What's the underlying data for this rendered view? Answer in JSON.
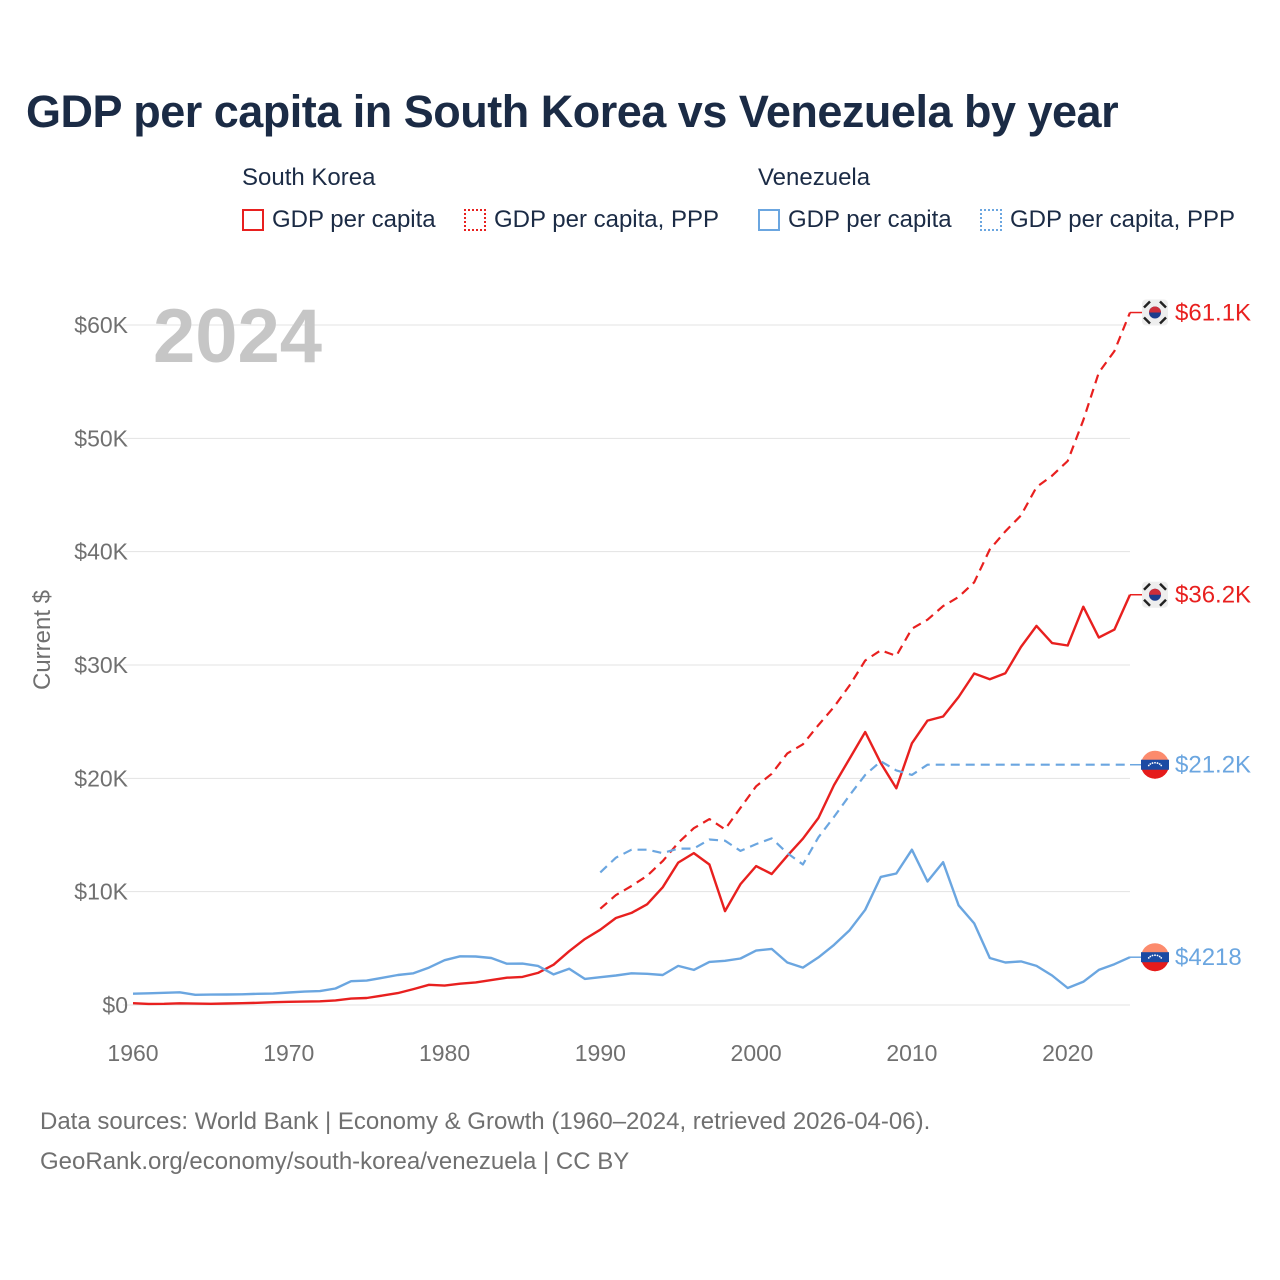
{
  "title": "GDP per capita in South Korea vs Venezuela by year",
  "legend": {
    "groups": [
      {
        "name": "South Korea",
        "items": [
          "GDP per capita",
          "GDP per capita, PPP"
        ]
      },
      {
        "name": "Venezuela",
        "items": [
          "GDP per capita",
          "GDP per capita, PPP"
        ]
      }
    ]
  },
  "footer": {
    "line1": "Data sources: World Bank | Economy & Growth (1960–2024, retrieved 2026-04-06).",
    "line2": "GeoRank.org/economy/south-korea/venezuela | CC BY"
  },
  "colors": {
    "south_korea": "#e8201f",
    "venezuela": "#6ba6e0"
  },
  "chart_data": {
    "type": "line",
    "title": "GDP per capita in South Korea vs Venezuela by year",
    "year_label": "2024",
    "ylabel": "Current $",
    "xlim": [
      1960,
      2024
    ],
    "ylim": [
      0,
      60000
    ],
    "xticks": [
      1960,
      1970,
      1980,
      1990,
      2000,
      2010,
      2020
    ],
    "xtick_labels": [
      "1960",
      "1970",
      "1980",
      "1990",
      "2000",
      "2010",
      "2020"
    ],
    "yticks": [
      0,
      10000,
      20000,
      30000,
      40000,
      50000,
      60000
    ],
    "ytick_labels": [
      "$0",
      "$10K",
      "$20K",
      "$30K",
      "$40K",
      "$50K",
      "$60K"
    ],
    "series": [
      {
        "name": "South Korea GDP per capita",
        "country": "south_korea",
        "style": "solid",
        "end_label": "$36.2K",
        "x": [
          1960,
          1961,
          1962,
          1963,
          1964,
          1965,
          1966,
          1967,
          1968,
          1969,
          1970,
          1971,
          1972,
          1973,
          1974,
          1975,
          1976,
          1977,
          1978,
          1979,
          1980,
          1981,
          1982,
          1983,
          1984,
          1985,
          1986,
          1987,
          1988,
          1989,
          1990,
          1991,
          1992,
          1993,
          1994,
          1995,
          1996,
          1997,
          1998,
          1999,
          2000,
          2001,
          2002,
          2003,
          2004,
          2005,
          2006,
          2007,
          2008,
          2009,
          2010,
          2011,
          2012,
          2013,
          2014,
          2015,
          2016,
          2017,
          2018,
          2019,
          2020,
          2021,
          2022,
          2023,
          2024
        ],
        "values": [
          158,
          94,
          106,
          146,
          124,
          108,
          133,
          161,
          198,
          243,
          279,
          301,
          323,
          406,
          563,
          615,
          830,
          1051,
          1405,
          1783,
          1715,
          1883,
          1993,
          2198,
          2413,
          2482,
          2835,
          3555,
          4749,
          5817,
          6642,
          7677,
          8126,
          8884,
          10385,
          12565,
          13403,
          12398,
          8282,
          10672,
          12257,
          11561,
          13165,
          14673,
          16496,
          19403,
          21743,
          24086,
          21345,
          19122,
          23087,
          25096,
          25459,
          27180,
          29253,
          28737,
          29274,
          31601,
          33447,
          31929,
          31721,
          35142,
          32423,
          33121,
          36200
        ]
      },
      {
        "name": "South Korea GDP per capita, PPP",
        "country": "south_korea",
        "style": "dashed",
        "end_label": "$61.1K",
        "x": [
          1990,
          1991,
          1992,
          1993,
          1994,
          1995,
          1996,
          1997,
          1998,
          1999,
          2000,
          2001,
          2002,
          2003,
          2004,
          2005,
          2006,
          2007,
          2008,
          2009,
          2010,
          2011,
          2012,
          2013,
          2014,
          2015,
          2016,
          2017,
          2018,
          2019,
          2020,
          2021,
          2022,
          2023,
          2024
        ],
        "values": [
          8500,
          9700,
          10500,
          11400,
          12700,
          14300,
          15600,
          16400,
          15500,
          17400,
          19300,
          20400,
          22200,
          23000,
          24700,
          26300,
          28200,
          30400,
          31300,
          30800,
          33200,
          34000,
          35200,
          36000,
          37300,
          40200,
          41800,
          43200,
          45700,
          46700,
          48000,
          51600,
          55800,
          57700,
          61100
        ]
      },
      {
        "name": "Venezuela GDP per capita",
        "country": "venezuela",
        "style": "solid",
        "end_label": "$4218",
        "x": [
          1960,
          1961,
          1962,
          1963,
          1964,
          1965,
          1966,
          1967,
          1968,
          1969,
          1970,
          1971,
          1972,
          1973,
          1974,
          1975,
          1976,
          1977,
          1978,
          1979,
          1980,
          1981,
          1982,
          1983,
          1984,
          1985,
          1986,
          1987,
          1988,
          1989,
          1990,
          1991,
          1992,
          1993,
          1994,
          1995,
          1996,
          1997,
          1998,
          1999,
          2000,
          2001,
          2002,
          2003,
          2004,
          2005,
          2006,
          2007,
          2008,
          2009,
          2010,
          2011,
          2012,
          2013,
          2014,
          2015,
          2016,
          2017,
          2018,
          2019,
          2020,
          2021,
          2022,
          2023,
          2024
        ],
        "values": [
          1000,
          1030,
          1080,
          1120,
          900,
          920,
          930,
          940,
          990,
          1010,
          1100,
          1180,
          1230,
          1460,
          2100,
          2150,
          2400,
          2650,
          2800,
          3300,
          3950,
          4300,
          4280,
          4150,
          3640,
          3650,
          3450,
          2700,
          3200,
          2300,
          2450,
          2600,
          2800,
          2750,
          2650,
          3450,
          3100,
          3800,
          3900,
          4100,
          4800,
          4950,
          3750,
          3300,
          4200,
          5300,
          6600,
          8400,
          11300,
          11600,
          13700,
          10900,
          12600,
          8800,
          7200,
          4150,
          3750,
          3850,
          3450,
          2600,
          1500,
          2050,
          3100,
          3600,
          4218
        ]
      },
      {
        "name": "Venezuela GDP per capita, PPP",
        "country": "venezuela",
        "style": "dashed",
        "end_label": "$21.2K",
        "x": [
          1990,
          1991,
          1992,
          1993,
          1994,
          1995,
          1996,
          1997,
          1998,
          1999,
          2000,
          2001,
          2002,
          2003,
          2004,
          2005,
          2006,
          2007,
          2008,
          2009,
          2010,
          2011,
          2024
        ],
        "values": [
          11700,
          13000,
          13700,
          13700,
          13400,
          13800,
          13800,
          14600,
          14500,
          13600,
          14200,
          14700,
          13400,
          12400,
          14800,
          16600,
          18500,
          20300,
          21500,
          20700,
          20300,
          21200,
          21200
        ]
      }
    ]
  }
}
